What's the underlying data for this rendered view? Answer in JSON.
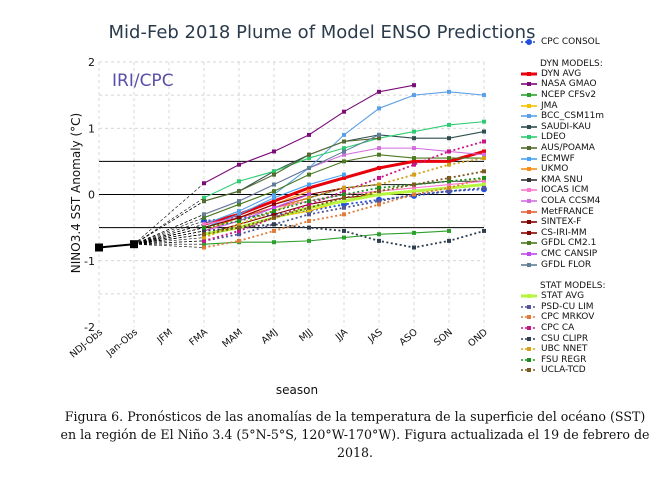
{
  "caption": "Figura 6. Pronósticos de las anomalías de la temperatura de la superficie del océano (SST) en la región de El Niño 3.4 (5°N-5°S, 120°W-170°W). Figura actualizada el 19 de febrero de 2018.",
  "chart_data": {
    "type": "line",
    "title": "Mid-Feb 2018 Plume of Model ENSO Predictions",
    "watermark": "IRI/CPC",
    "xlabel": "season",
    "ylabel": "NINO3.4 SST Anomaly (°C)",
    "ylim": [
      -2,
      2
    ],
    "yticks": [
      "2",
      "1",
      "0",
      "-1",
      "-2"
    ],
    "categories": [
      "NDJ-Obs",
      "Jan-Obs",
      "JFM",
      "FMA",
      "MAM",
      "AMJ",
      "MJJ",
      "JJA",
      "JAS",
      "ASO",
      "SON",
      "OND"
    ],
    "observed": [
      -0.8,
      -0.75
    ],
    "threshold_lines": [
      0.5,
      0,
      -0.5
    ],
    "grid": "dashed",
    "legend_headers": {
      "cpc": "CPC CONSOL",
      "dyn": "DYN MODELS:",
      "stat": "STAT MODELS:"
    },
    "series": [
      {
        "name": "CPC CONSOL",
        "group": "cpc",
        "color": "#1f4fd8",
        "style": "dot",
        "values": [
          null,
          null,
          null,
          -0.4,
          -0.35,
          -0.3,
          -0.25,
          -0.15,
          -0.08,
          -0.02,
          0.05,
          0.08
        ]
      },
      {
        "name": "DYN AVG",
        "group": "dyn",
        "color": "#e8000b",
        "style": "solid",
        "width": 3,
        "values": [
          null,
          null,
          null,
          -0.45,
          -0.3,
          -0.1,
          0.1,
          0.25,
          0.4,
          0.5,
          0.5,
          0.65
        ]
      },
      {
        "name": "NASA GMAO",
        "group": "dyn",
        "color": "#7b0c7a",
        "style": "solid",
        "values": [
          null,
          null,
          null,
          0.17,
          0.45,
          0.65,
          0.9,
          1.25,
          1.55,
          1.65,
          null,
          null
        ]
      },
      {
        "name": "NCEP CFSv2",
        "group": "dyn",
        "color": "#2ca02c",
        "style": "solid",
        "values": [
          null,
          null,
          null,
          -0.75,
          -0.72,
          -0.72,
          -0.7,
          -0.65,
          -0.6,
          -0.58,
          -0.55,
          null
        ]
      },
      {
        "name": "JMA",
        "group": "dyn",
        "color": "#f2c200",
        "style": "solid",
        "values": [
          null,
          null,
          null,
          -0.6,
          -0.5,
          -0.35,
          -0.25,
          -0.1,
          0.05,
          0.1,
          null,
          null
        ]
      },
      {
        "name": "BCC_CSM11m",
        "group": "dyn",
        "color": "#5aa0e6",
        "style": "solid",
        "values": [
          null,
          null,
          null,
          -0.45,
          -0.25,
          0.0,
          0.4,
          0.9,
          1.3,
          1.5,
          1.55,
          1.5
        ]
      },
      {
        "name": "SAUDI-KAU",
        "group": "dyn",
        "color": "#2f4f4f",
        "style": "solid",
        "values": [
          null,
          null,
          null,
          -0.1,
          0.05,
          0.35,
          0.6,
          0.8,
          0.9,
          0.85,
          0.85,
          0.95
        ]
      },
      {
        "name": "LDEO",
        "group": "dyn",
        "color": "#2ecc71",
        "style": "solid",
        "values": [
          null,
          null,
          null,
          -0.05,
          0.2,
          0.35,
          0.55,
          0.7,
          0.85,
          0.95,
          1.05,
          1.1
        ]
      },
      {
        "name": "AUS/POAMA",
        "group": "dyn",
        "color": "#556b2f",
        "style": "solid",
        "values": [
          null,
          null,
          null,
          -0.1,
          0.05,
          0.3,
          0.6,
          0.8,
          0.85,
          null,
          null,
          null
        ]
      },
      {
        "name": "ECMWF",
        "group": "dyn",
        "color": "#4aa3f0",
        "style": "solid",
        "values": [
          null,
          null,
          null,
          -0.5,
          -0.3,
          -0.05,
          0.15,
          0.3,
          null,
          null,
          null,
          null
        ]
      },
      {
        "name": "UKMO",
        "group": "dyn",
        "color": "#ff8c1a",
        "style": "solid",
        "values": [
          null,
          null,
          null,
          -0.55,
          -0.35,
          -0.15,
          0.05,
          null,
          null,
          null,
          null,
          null
        ]
      },
      {
        "name": "KMA SNU",
        "group": "dyn",
        "color": "#333333",
        "style": "solid",
        "values": [
          null,
          null,
          null,
          -0.5,
          -0.35,
          -0.2,
          -0.05,
          0.1,
          0.15,
          0.15,
          0.2,
          0.2
        ]
      },
      {
        "name": "IOCAS ICM",
        "group": "dyn",
        "color": "#ff77cc",
        "style": "solid",
        "values": [
          null,
          null,
          null,
          -0.45,
          -0.35,
          -0.2,
          -0.1,
          0.0,
          0.05,
          0.1,
          0.15,
          0.2
        ]
      },
      {
        "name": "COLA CCSM4",
        "group": "dyn",
        "color": "#d36ee0",
        "style": "solid",
        "values": [
          null,
          null,
          null,
          -0.3,
          -0.1,
          0.15,
          0.4,
          0.6,
          0.7,
          0.7,
          0.65,
          0.6
        ]
      },
      {
        "name": "MetFRANCE",
        "group": "dyn",
        "color": "#e8603c",
        "style": "solid",
        "values": [
          null,
          null,
          null,
          -0.5,
          -0.35,
          -0.2,
          -0.05,
          null,
          null,
          null,
          null,
          null
        ]
      },
      {
        "name": "SINTEX-F",
        "group": "dyn",
        "color": "#800000",
        "style": "solid",
        "values": [
          null,
          null,
          null,
          -0.6,
          -0.45,
          -0.3,
          -0.15,
          -0.05,
          0.0,
          null,
          null,
          null
        ]
      },
      {
        "name": "CS-IRI-MM",
        "group": "dyn",
        "color": "#8b0000",
        "style": "solid",
        "values": [
          null,
          null,
          null,
          -0.5,
          -0.35,
          -0.15,
          0.0,
          0.1,
          null,
          null,
          null,
          null
        ]
      },
      {
        "name": "GFDL CM2.1",
        "group": "dyn",
        "color": "#4b7a1f",
        "style": "solid",
        "values": [
          null,
          null,
          null,
          -0.35,
          -0.15,
          0.05,
          0.3,
          0.5,
          0.6,
          0.55,
          0.55,
          0.55
        ]
      },
      {
        "name": "CMC CANSIP",
        "group": "dyn",
        "color": "#c048f0",
        "style": "solid",
        "values": [
          null,
          null,
          null,
          -0.55,
          -0.4,
          -0.2,
          0.0,
          null,
          null,
          null,
          null,
          null
        ]
      },
      {
        "name": "GFDL FLOR",
        "group": "dyn",
        "color": "#5f7f96",
        "style": "solid",
        "values": [
          null,
          null,
          null,
          -0.3,
          -0.1,
          0.15,
          0.4,
          0.65,
          0.9,
          null,
          null,
          null
        ]
      },
      {
        "name": "STAT AVG",
        "group": "stat",
        "color": "#b7f53f",
        "style": "solid",
        "width": 3,
        "values": [
          null,
          null,
          null,
          -0.6,
          -0.5,
          -0.35,
          -0.2,
          -0.1,
          0.0,
          0.05,
          0.1,
          0.15
        ]
      },
      {
        "name": "PSD-CU LIM",
        "group": "stat",
        "color": "#555599",
        "style": "dot",
        "values": [
          null,
          null,
          null,
          -0.7,
          -0.6,
          -0.45,
          -0.3,
          -0.2,
          -0.1,
          0.0,
          0.05,
          0.1
        ]
      },
      {
        "name": "CPC MRKOV",
        "group": "stat",
        "color": "#e07b39",
        "style": "dot",
        "values": [
          null,
          null,
          null,
          -0.8,
          -0.7,
          -0.55,
          -0.4,
          -0.3,
          -0.15,
          0.0,
          0.1,
          0.25
        ]
      },
      {
        "name": "CPC CA",
        "group": "stat",
        "color": "#c71585",
        "style": "dot",
        "values": [
          null,
          null,
          null,
          -0.7,
          -0.55,
          -0.35,
          -0.15,
          0.05,
          0.25,
          0.45,
          0.65,
          0.8
        ]
      },
      {
        "name": "CSU CLIPR",
        "group": "stat",
        "color": "#2f3f4f",
        "style": "dot",
        "values": [
          null,
          null,
          null,
          -0.55,
          -0.5,
          -0.45,
          -0.5,
          -0.55,
          -0.7,
          -0.8,
          -0.7,
          -0.55
        ]
      },
      {
        "name": "UBC NNET",
        "group": "stat",
        "color": "#d4a017",
        "style": "dot",
        "values": [
          null,
          null,
          null,
          -0.65,
          -0.45,
          -0.25,
          -0.05,
          0.1,
          0.15,
          0.3,
          0.45,
          0.55
        ]
      },
      {
        "name": "FSU REGR",
        "group": "stat",
        "color": "#1f8f1f",
        "style": "dot",
        "values": [
          null,
          null,
          null,
          -0.5,
          -0.4,
          -0.25,
          -0.1,
          0.0,
          0.1,
          0.15,
          0.2,
          0.25
        ]
      },
      {
        "name": "UCLA-TCD",
        "group": "stat",
        "color": "#7a5a1f",
        "style": "dot",
        "values": [
          null,
          null,
          null,
          -0.6,
          -0.5,
          -0.35,
          -0.2,
          -0.05,
          0.05,
          0.15,
          0.25,
          0.35
        ]
      }
    ]
  }
}
